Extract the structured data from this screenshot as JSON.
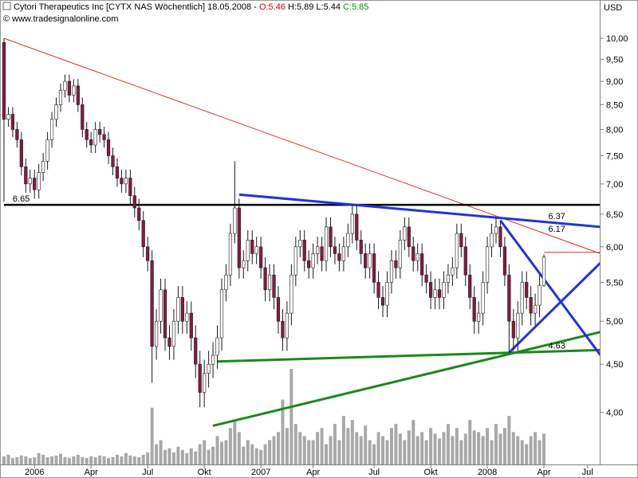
{
  "chart_data": {
    "type": "candlestick",
    "header": {
      "title": "Cytori Therapeutics Inc [CYTX NAS  Wöchentlich] 18.05.2008 - ",
      "open_label": "O:5.46",
      "high_label": "H:5.89",
      "low_label": "L:5.44",
      "close_label": "C:5.85",
      "source": "© www.tradesignalonline.com"
    },
    "currency": "USD",
    "log_scale": true,
    "grid": false,
    "up_color": "#ffffff",
    "down_color": "#8b1a3a",
    "volume_color": "#a8a8a8",
    "ylim": [
      3.52,
      10.9
    ],
    "yticks": [
      {
        "value": 4,
        "label": "4,00"
      },
      {
        "value": 4.5,
        "label": "4,50"
      },
      {
        "value": 5,
        "label": "5,00"
      },
      {
        "value": 5.5,
        "label": "5,50"
      },
      {
        "value": 6,
        "label": "6,00"
      },
      {
        "value": 6.5,
        "label": "6,50"
      },
      {
        "value": 7,
        "label": "7,00"
      },
      {
        "value": 7.5,
        "label": "7,50"
      },
      {
        "value": 8,
        "label": "8,00"
      },
      {
        "value": 8.5,
        "label": "8,50"
      },
      {
        "value": 9,
        "label": "9,00"
      },
      {
        "value": 9.5,
        "label": "9,50"
      },
      {
        "value": 10,
        "label": "10,00"
      }
    ],
    "categories": [
      null,
      null,
      null,
      null,
      null,
      null,
      null,
      "2006",
      null,
      null,
      null,
      null,
      null,
      null,
      null,
      null,
      null,
      null,
      null,
      null,
      "Apr",
      null,
      null,
      null,
      null,
      null,
      null,
      null,
      null,
      null,
      null,
      null,
      null,
      "Jul",
      null,
      null,
      null,
      null,
      null,
      null,
      null,
      null,
      null,
      null,
      null,
      null,
      "Okt",
      null,
      null,
      null,
      null,
      null,
      null,
      null,
      null,
      null,
      null,
      null,
      null,
      "2007",
      null,
      null,
      null,
      null,
      null,
      null,
      null,
      null,
      null,
      null,
      null,
      "Apr",
      null,
      null,
      null,
      null,
      null,
      null,
      null,
      null,
      null,
      null,
      null,
      null,
      null,
      "Jul",
      null,
      null,
      null,
      null,
      null,
      null,
      null,
      null,
      null,
      null,
      null,
      null,
      "Okt",
      null,
      null,
      null,
      null,
      null,
      null,
      null,
      null,
      null,
      null,
      null,
      null,
      "2008",
      null,
      null,
      null,
      null,
      null,
      null,
      null,
      null,
      null,
      null,
      null,
      null,
      "Apr",
      null,
      null,
      null,
      null,
      null,
      null,
      null,
      null,
      null,
      "Jul",
      null,
      null
    ],
    "open": [
      9.9,
      8.2,
      8.3,
      8.0,
      7.8,
      7.3,
      7.0,
      7.1,
      6.9,
      7.2,
      7.4,
      7.8,
      8.2,
      8.5,
      8.8,
      9.0,
      8.7,
      8.9,
      8.5,
      8.0,
      7.8,
      7.7,
      8.0,
      7.9,
      7.8,
      7.5,
      7.3,
      7.1,
      7.0,
      7.1,
      6.8,
      6.6,
      6.4,
      6.0,
      5.8,
      4.7,
      5.0,
      5.4,
      4.8,
      4.7,
      5.0,
      5.3,
      5.0,
      5.1,
      4.8,
      4.5,
      4.2,
      4.4,
      4.5,
      4.6,
      4.8,
      5.4,
      5.6,
      6.2,
      6.6,
      5.7,
      5.8,
      6.1,
      5.9,
      6.0,
      5.7,
      5.4,
      5.6,
      5.3,
      5.0,
      4.8,
      5.1,
      5.6,
      6.0,
      6.1,
      5.8,
      5.7,
      5.9,
      6.0,
      5.8,
      6.3,
      6.0,
      5.9,
      5.8,
      6.0,
      6.2,
      6.5,
      6.1,
      5.9,
      5.7,
      5.9,
      5.5,
      5.3,
      5.2,
      5.5,
      5.8,
      5.7,
      6.1,
      6.3,
      6.0,
      5.8,
      5.9,
      5.6,
      5.5,
      5.3,
      5.4,
      5.3,
      5.5,
      5.6,
      5.7,
      6.2,
      6.0,
      5.6,
      5.3,
      5.0,
      5.1,
      5.5,
      6.0,
      6.2,
      6.3,
      6.0,
      5.6,
      5.0,
      4.8,
      5.1,
      5.5,
      5.3,
      5.1,
      5.2,
      5.46,
      null,
      null,
      null,
      null,
      null,
      null,
      null,
      null,
      null,
      null,
      null,
      null
    ],
    "high": [
      10.0,
      8.45,
      8.45,
      8.15,
      7.95,
      7.45,
      7.25,
      7.25,
      7.35,
      7.55,
      7.95,
      8.35,
      8.65,
      8.95,
      9.15,
      9.15,
      9.05,
      9.05,
      8.65,
      8.15,
      7.95,
      8.15,
      8.15,
      8.05,
      7.95,
      7.65,
      7.45,
      7.25,
      7.25,
      7.25,
      6.95,
      6.75,
      6.55,
      6.15,
      5.95,
      5.15,
      5.55,
      5.55,
      4.95,
      5.15,
      5.45,
      5.45,
      5.25,
      5.25,
      4.95,
      4.65,
      4.55,
      4.65,
      4.75,
      4.95,
      5.55,
      5.75,
      6.35,
      7.4,
      6.75,
      5.95,
      6.25,
      6.25,
      6.15,
      6.15,
      5.85,
      5.75,
      5.75,
      5.45,
      5.15,
      5.25,
      5.75,
      6.15,
      6.25,
      6.25,
      5.95,
      6.05,
      6.15,
      6.15,
      6.45,
      6.45,
      6.15,
      6.05,
      6.15,
      6.35,
      6.65,
      6.65,
      6.25,
      6.05,
      6.05,
      6.05,
      5.65,
      5.45,
      5.65,
      5.95,
      5.95,
      6.25,
      6.45,
      6.45,
      6.15,
      6.05,
      6.05,
      5.75,
      5.65,
      5.55,
      5.55,
      5.65,
      5.75,
      5.85,
      6.35,
      6.35,
      6.15,
      5.75,
      5.45,
      5.25,
      5.65,
      6.15,
      6.35,
      6.45,
      6.4,
      6.15,
      5.75,
      5.15,
      5.25,
      5.65,
      5.65,
      5.45,
      5.35,
      5.6,
      5.89,
      null,
      null,
      null,
      null,
      null,
      null,
      null,
      null,
      null,
      null,
      null,
      null
    ],
    "low": [
      6.7,
      8.05,
      7.85,
      7.65,
      7.15,
      6.85,
      6.85,
      6.75,
      6.75,
      7.05,
      7.25,
      7.65,
      8.05,
      8.35,
      8.65,
      8.55,
      8.55,
      8.35,
      7.85,
      7.65,
      7.55,
      7.55,
      7.75,
      7.65,
      7.35,
      7.15,
      6.95,
      6.85,
      6.85,
      6.65,
      6.45,
      6.25,
      5.85,
      5.65,
      4.3,
      4.55,
      4.85,
      4.65,
      4.55,
      4.55,
      4.85,
      4.85,
      4.85,
      4.65,
      4.35,
      4.05,
      4.05,
      4.25,
      4.35,
      4.45,
      4.65,
      5.25,
      5.45,
      6.05,
      5.55,
      5.55,
      5.65,
      5.75,
      5.75,
      5.55,
      5.25,
      5.25,
      5.15,
      4.85,
      4.65,
      4.65,
      4.95,
      5.45,
      5.85,
      5.65,
      5.55,
      5.55,
      5.75,
      5.65,
      5.65,
      5.85,
      5.75,
      5.65,
      5.65,
      5.85,
      6.05,
      5.95,
      5.75,
      5.55,
      5.55,
      5.35,
      5.15,
      5.05,
      5.05,
      5.35,
      5.55,
      5.55,
      5.95,
      5.85,
      5.65,
      5.65,
      5.45,
      5.35,
      5.15,
      5.15,
      5.15,
      5.15,
      5.35,
      5.45,
      5.55,
      5.85,
      5.45,
      5.15,
      4.85,
      4.85,
      4.95,
      5.35,
      5.85,
      6.05,
      5.85,
      5.45,
      4.63,
      4.65,
      4.65,
      4.95,
      5.15,
      4.95,
      4.95,
      5.05,
      5.44,
      null,
      null,
      null,
      null,
      null,
      null,
      null,
      null,
      null,
      null,
      null,
      null
    ],
    "close": [
      8.2,
      8.3,
      8.0,
      7.8,
      7.3,
      7.0,
      7.1,
      6.9,
      7.2,
      7.4,
      7.8,
      8.2,
      8.5,
      8.8,
      9.0,
      8.7,
      8.9,
      8.5,
      8.0,
      7.8,
      7.7,
      8.0,
      7.9,
      7.8,
      7.5,
      7.3,
      7.1,
      7.0,
      7.1,
      6.8,
      6.6,
      6.4,
      6.0,
      5.8,
      4.7,
      5.0,
      5.4,
      4.8,
      4.7,
      5.0,
      5.3,
      5.0,
      5.1,
      4.8,
      4.5,
      4.2,
      4.4,
      4.5,
      4.6,
      4.8,
      5.4,
      5.6,
      6.2,
      6.6,
      5.7,
      5.8,
      6.1,
      5.9,
      6.0,
      5.7,
      5.4,
      5.6,
      5.3,
      5.0,
      4.8,
      5.1,
      5.6,
      6.0,
      6.1,
      5.8,
      5.7,
      5.9,
      6.0,
      5.8,
      6.3,
      6.0,
      5.9,
      5.8,
      6.0,
      6.2,
      6.5,
      6.1,
      5.9,
      5.7,
      5.9,
      5.5,
      5.3,
      5.2,
      5.5,
      5.8,
      5.7,
      6.1,
      6.3,
      6.0,
      5.8,
      5.9,
      5.6,
      5.5,
      5.3,
      5.4,
      5.3,
      5.5,
      5.6,
      5.7,
      6.2,
      6.0,
      5.6,
      5.3,
      5.0,
      5.1,
      5.5,
      6.0,
      6.2,
      6.3,
      6.0,
      5.6,
      5.0,
      4.8,
      5.1,
      5.5,
      5.3,
      5.1,
      5.2,
      5.46,
      5.85,
      null,
      null,
      null,
      null,
      null,
      null,
      null,
      null,
      null,
      null,
      null,
      null
    ],
    "volume": [
      10,
      12,
      8,
      9,
      11,
      10,
      8,
      9,
      14,
      12,
      9,
      10,
      11,
      13,
      9,
      8,
      10,
      12,
      9,
      8,
      10,
      9,
      11,
      10,
      8,
      9,
      12,
      10,
      14,
      11,
      10,
      9,
      12,
      15,
      70,
      25,
      30,
      18,
      20,
      15,
      22,
      18,
      14,
      20,
      16,
      25,
      30,
      18,
      22,
      35,
      28,
      30,
      45,
      55,
      40,
      22,
      30,
      25,
      20,
      18,
      25,
      30,
      35,
      40,
      80,
      45,
      118,
      50,
      40,
      35,
      30,
      30,
      40,
      45,
      25,
      35,
      50,
      30,
      60,
      45,
      55,
      40,
      35,
      48,
      30,
      25,
      40,
      35,
      30,
      45,
      50,
      38,
      30,
      42,
      55,
      35,
      40,
      30,
      45,
      38,
      32,
      40,
      50,
      35,
      45,
      30,
      38,
      55,
      42,
      40,
      35,
      45,
      30,
      50,
      38,
      45,
      60,
      40,
      35,
      30,
      25,
      35,
      40,
      30,
      38,
      null,
      null,
      null,
      null,
      null,
      null,
      null,
      null,
      null,
      null,
      null,
      null
    ],
    "trendlines": [
      {
        "color": "#e03020",
        "width": 1,
        "x": [
          0,
          137
        ],
        "y": [
          10.0,
          5.9
        ],
        "label": "6.17",
        "label_side": "right"
      },
      {
        "color": "#000000",
        "width": 2.5,
        "x": [
          0,
          137
        ],
        "y": [
          6.65,
          6.65
        ],
        "label": "6.65",
        "label_side": "left"
      },
      {
        "color": "#2233dd",
        "width": 3,
        "x": [
          54,
          137
        ],
        "y": [
          6.82,
          6.3
        ],
        "label": "6.37",
        "label_side": "right"
      },
      {
        "color": "#1a8a1a",
        "width": 3,
        "x": [
          49,
          137
        ],
        "y": [
          4.53,
          4.66
        ],
        "label": "4.63",
        "label_side": "right"
      },
      {
        "color": "#1a8a1a",
        "width": 3,
        "x": [
          48,
          137
        ],
        "y": [
          3.87,
          4.87
        ]
      },
      {
        "color": "#2233dd",
        "width": 3,
        "x": [
          114,
          137
        ],
        "y": [
          6.4,
          4.6
        ]
      },
      {
        "color": "#2233dd",
        "width": 3,
        "x": [
          116,
          137
        ],
        "y": [
          4.63,
          5.77
        ]
      },
      {
        "color": "#e03020",
        "width": 1,
        "x": [
          124,
          137
        ],
        "y": [
          5.92,
          5.92
        ]
      }
    ]
  }
}
